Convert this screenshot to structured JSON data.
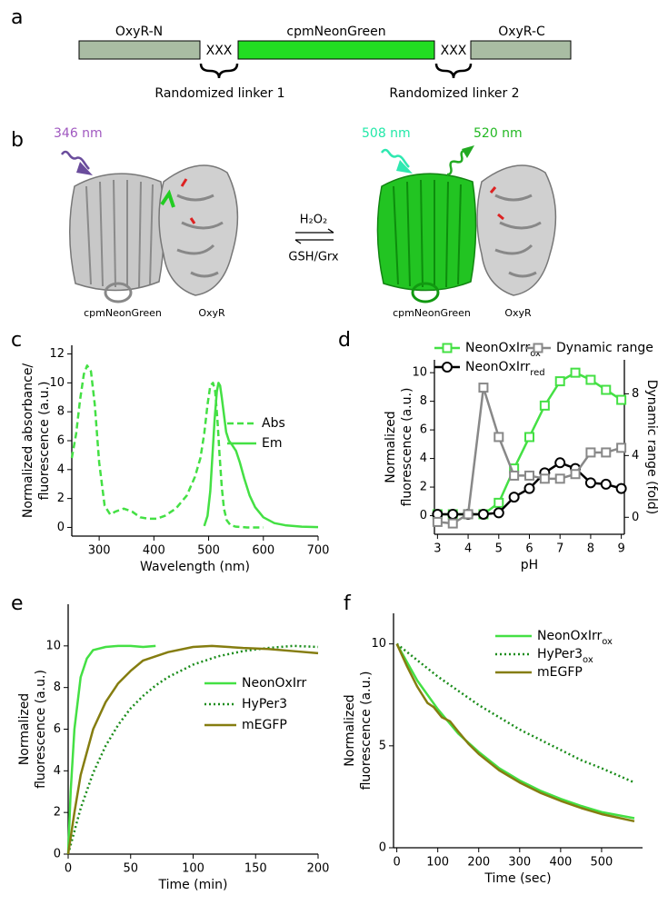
{
  "panel_a": {
    "label": "a",
    "segments": [
      "OxyR-N",
      "XXX",
      "cpmNeonGreen",
      "XXX",
      "OxyR-C"
    ],
    "linkers": [
      "Randomized linker 1",
      "Randomized linker 2"
    ]
  },
  "panel_b": {
    "label": "b",
    "wavelengths": [
      "346 nm",
      "508 nm",
      "520 nm"
    ],
    "forward": "H₂O₂",
    "reverse": "GSH/Grx",
    "left_labels": [
      "cpmNeonGreen",
      "OxyR"
    ],
    "right_labels": [
      "cpmNeonGreen",
      "OxyR"
    ]
  },
  "chart_data": [
    {
      "panel": "c",
      "type": "line",
      "xlabel": "Wavelength (nm)",
      "ylabel": [
        "Normalized absorbance/",
        "fluorescence (a.u.)"
      ],
      "xlim": [
        250,
        700
      ],
      "xticks": [
        300,
        400,
        500,
        600,
        700
      ],
      "ylim": [
        -0.6,
        12.6
      ],
      "yticks": [
        0,
        2,
        4,
        6,
        8,
        10,
        12
      ],
      "series": [
        {
          "name": "Abs",
          "color": "#44e044",
          "dash": "dashed",
          "x": [
            250,
            258,
            265,
            272,
            278,
            285,
            292,
            300,
            310,
            320,
            330,
            345,
            360,
            375,
            390,
            405,
            420,
            440,
            460,
            475,
            485,
            492,
            498,
            503,
            508,
            512,
            516,
            520,
            524,
            528,
            533,
            540,
            550,
            570,
            600
          ],
          "values": [
            4.8,
            6.5,
            8.8,
            10.6,
            11.2,
            10.8,
            8.5,
            4.5,
            1.5,
            0.9,
            1.1,
            1.3,
            1.1,
            0.7,
            0.6,
            0.6,
            0.8,
            1.3,
            2.2,
            3.5,
            4.8,
            6.5,
            8.5,
            9.8,
            10,
            9.4,
            7.5,
            5,
            2.8,
            1.3,
            0.5,
            0.15,
            0.05,
            0,
            0
          ]
        },
        {
          "name": "Em",
          "color": "#44e044",
          "dash": "solid",
          "x": [
            492,
            498,
            503,
            507,
            511,
            515,
            518,
            521,
            524,
            528,
            532,
            537,
            543,
            550,
            557,
            565,
            575,
            585,
            600,
            620,
            640,
            670,
            700
          ],
          "values": [
            0.1,
            0.8,
            2.5,
            5,
            7.5,
            9.4,
            10,
            9.8,
            9,
            7.8,
            6.6,
            6,
            5.7,
            5.3,
            4.5,
            3.4,
            2.2,
            1.4,
            0.7,
            0.3,
            0.15,
            0.05,
            0.02
          ]
        }
      ]
    },
    {
      "panel": "d",
      "type": "line",
      "xlabel": "pH",
      "ylabel": [
        "Normalized",
        "fluorescence (a.u.)"
      ],
      "y2label": "Dynamic range (fold)",
      "x": [
        3,
        3.5,
        4,
        4.5,
        5,
        5.5,
        6,
        6.5,
        7,
        7.5,
        8,
        8.5,
        9
      ],
      "xlim": [
        2.9,
        9.1
      ],
      "xticks": [
        3,
        4,
        5,
        6,
        7,
        8,
        9
      ],
      "ylim": [
        -1.3,
        10.9
      ],
      "yticks": [
        0,
        2,
        4,
        6,
        8,
        10
      ],
      "y2lim": [
        -1.1,
        10.2
      ],
      "y2ticks": [
        0,
        4,
        8
      ],
      "series": [
        {
          "name": "NeonOxIrr",
          "name_sub": "ox",
          "color": "#44e044",
          "marker": "square",
          "values": [
            0.1,
            0.1,
            0.1,
            0.1,
            0.9,
            3.3,
            5.5,
            7.7,
            9.4,
            10,
            9.5,
            8.8,
            8.1
          ]
        },
        {
          "name": "NeonOxIrr",
          "name_sub": "red",
          "color": "#000000",
          "marker": "circle",
          "values": [
            0.1,
            0.1,
            0.1,
            0.1,
            0.2,
            1.3,
            1.9,
            3.0,
            3.7,
            3.3,
            2.3,
            2.2,
            1.9
          ]
        },
        {
          "name": "Dynamic range",
          "color": "#888888",
          "marker": "square",
          "axis": "y2",
          "values": [
            -0.3,
            -0.4,
            0.2,
            8.4,
            5.2,
            2.7,
            2.7,
            2.5,
            2.5,
            2.8,
            4.2,
            4.2,
            4.5
          ]
        }
      ]
    },
    {
      "panel": "e",
      "type": "line",
      "xlabel": "Time (min)",
      "ylabel": [
        "Normalized",
        "fluorescence (a.u.)"
      ],
      "xlim": [
        0,
        200
      ],
      "xticks": [
        0,
        50,
        100,
        150,
        200
      ],
      "ylim": [
        0,
        12
      ],
      "yticks": [
        0,
        2,
        4,
        6,
        8,
        10
      ],
      "series": [
        {
          "name": "NeonOxIrr",
          "color": "#44e044",
          "dash": "solid",
          "x": [
            0,
            2,
            5,
            10,
            15,
            20,
            30,
            40,
            50,
            60,
            70
          ],
          "values": [
            0,
            3,
            6,
            8.5,
            9.4,
            9.8,
            9.95,
            10,
            10,
            9.95,
            10
          ]
        },
        {
          "name": "HyPer3",
          "color": "#1a8c1a",
          "dash": "dotted",
          "x": [
            0,
            10,
            20,
            30,
            40,
            50,
            60,
            70,
            80,
            100,
            120,
            140,
            160,
            180,
            200
          ],
          "values": [
            0,
            2.2,
            3.9,
            5.2,
            6.2,
            7,
            7.6,
            8.1,
            8.5,
            9.1,
            9.5,
            9.75,
            9.9,
            10,
            9.95
          ]
        },
        {
          "name": "mEGFP",
          "color": "#857d10",
          "dash": "solid",
          "x": [
            0,
            5,
            10,
            20,
            30,
            40,
            50,
            60,
            80,
            100,
            115,
            140,
            160,
            180,
            200
          ],
          "values": [
            0,
            2,
            3.8,
            6,
            7.3,
            8.2,
            8.8,
            9.3,
            9.7,
            9.95,
            10,
            9.9,
            9.85,
            9.75,
            9.65
          ]
        }
      ]
    },
    {
      "panel": "f",
      "type": "line",
      "xlabel": "Time (sec)",
      "ylabel": [
        "Normalized",
        "fluorescence (a.u.)"
      ],
      "xlim": [
        -8,
        600
      ],
      "xticks": [
        0,
        100,
        200,
        300,
        400,
        500
      ],
      "ylim": [
        0,
        11.5
      ],
      "yticks": [
        0,
        5,
        10
      ],
      "series": [
        {
          "name": "NeonOxIrr",
          "name_sub": "ox",
          "color": "#44e044",
          "dash": "solid",
          "x": [
            0,
            50,
            100,
            150,
            200,
            250,
            300,
            350,
            400,
            450,
            500,
            580
          ],
          "values": [
            10,
            8.2,
            6.8,
            5.6,
            4.7,
            3.9,
            3.3,
            2.8,
            2.4,
            2.05,
            1.75,
            1.45
          ]
        },
        {
          "name": "HyPer3",
          "name_sub": "ox",
          "color": "#1a8c1a",
          "dash": "dotted",
          "x": [
            0,
            50,
            100,
            150,
            200,
            250,
            300,
            350,
            400,
            450,
            500,
            580
          ],
          "values": [
            10,
            9.2,
            8.4,
            7.7,
            7.0,
            6.4,
            5.8,
            5.3,
            4.8,
            4.3,
            3.9,
            3.2
          ]
        },
        {
          "name": "mEGFP",
          "color": "#857d10",
          "dash": "solid",
          "x": [
            0,
            25,
            50,
            75,
            90,
            110,
            130,
            150,
            175,
            200,
            250,
            300,
            350,
            400,
            450,
            500,
            580
          ],
          "values": [
            10,
            8.9,
            7.9,
            7.1,
            6.9,
            6.4,
            6.2,
            5.7,
            5.1,
            4.6,
            3.8,
            3.2,
            2.7,
            2.3,
            1.95,
            1.65,
            1.3
          ]
        }
      ]
    }
  ]
}
